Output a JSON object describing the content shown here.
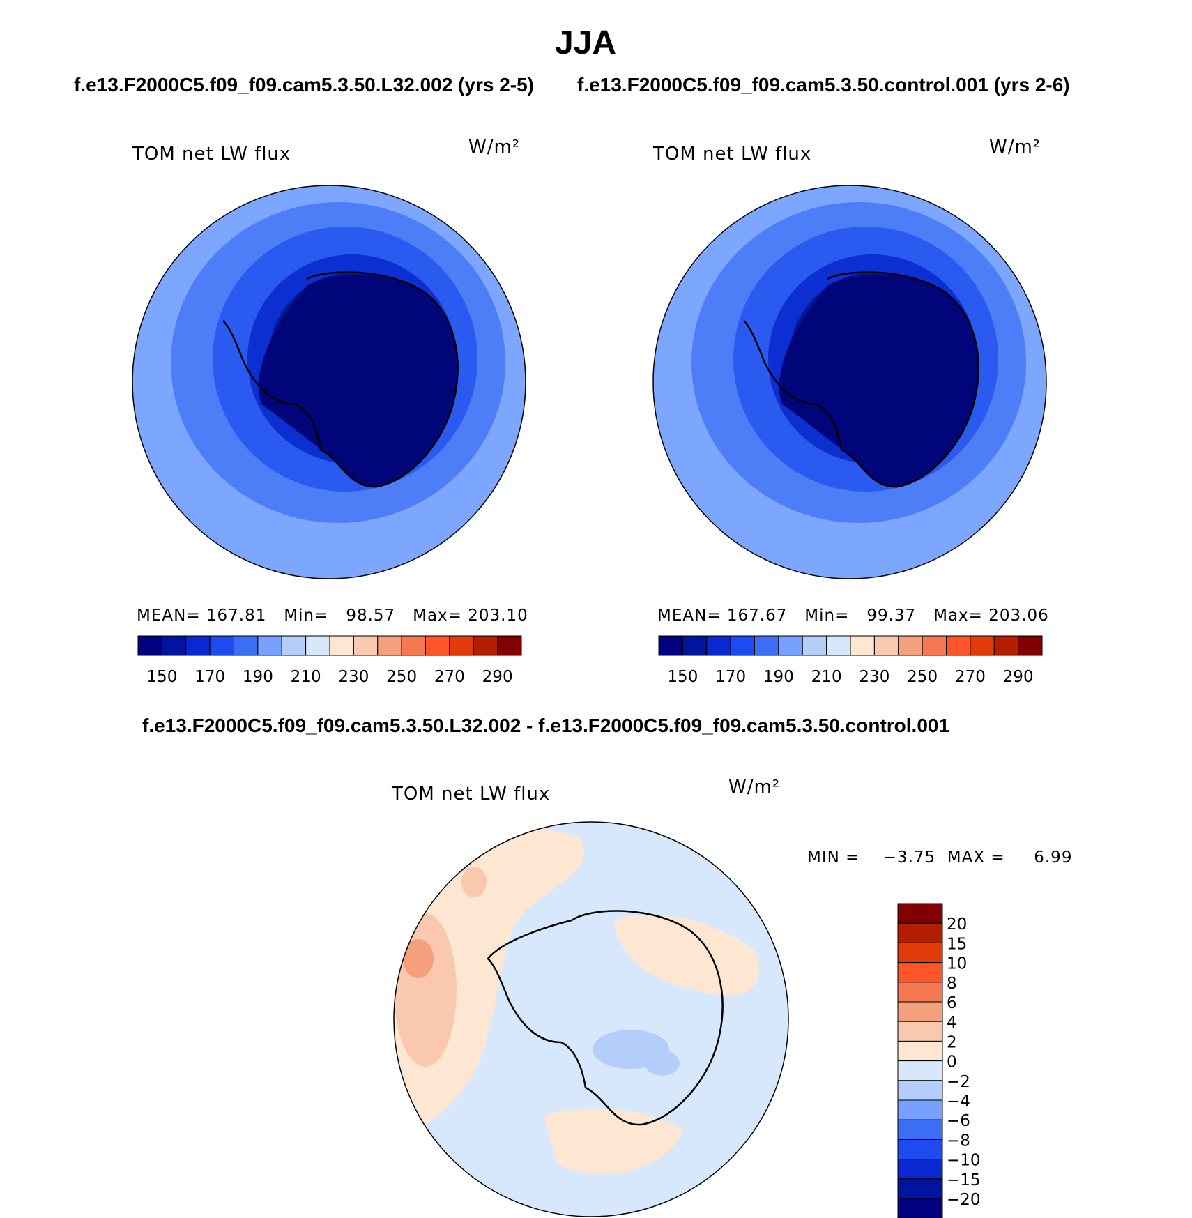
{
  "title": "JJA",
  "panel_left": {
    "subtitle": "f.e13.F2000C5.f09_f09.cam5.3.50.L32.002 (yrs 2-5)",
    "var_label": "TOM net LW flux",
    "units": "W/m²",
    "stats": "MEAN= 167.81   Min=   98.57   Max= 203.10",
    "mean": 167.81,
    "min": 98.57,
    "max": 203.1
  },
  "panel_right": {
    "subtitle": "f.e13.F2000C5.f09_f09.cam5.3.50.control.001 (yrs 2-6)",
    "var_label": "TOM net LW flux",
    "units": "W/m²",
    "stats": "MEAN= 167.67   Min=   99.37   Max= 203.06",
    "mean": 167.67,
    "min": 99.37,
    "max": 203.06
  },
  "panel_diff": {
    "subtitle": "f.e13.F2000C5.f09_f09.cam5.3.50.L32.002 - f.e13.F2000C5.f09_f09.cam5.3.50.control.001",
    "var_label": "TOM net LW flux",
    "units": "W/m²",
    "stats": "MIN =    −3.75  MAX =     6.99",
    "min": -3.75,
    "max": 6.99
  },
  "colorbar_top": {
    "tick_labels": [
      "150",
      "170",
      "190",
      "210",
      "230",
      "250",
      "270",
      "290"
    ],
    "colors": [
      "#000080",
      "#0014a0",
      "#0a28d2",
      "#1e4bf0",
      "#3c6ef5",
      "#78a0ff",
      "#b4cdfa",
      "#d7e8fc",
      "#fde6d2",
      "#fac8af",
      "#f5a07d",
      "#f57850",
      "#ff5528",
      "#e13c0a",
      "#b41e00",
      "#820000"
    ]
  },
  "colorbar_diff": {
    "tick_labels": [
      "20",
      "15",
      "10",
      "8",
      "6",
      "4",
      "2",
      "0",
      "−2",
      "−4",
      "−6",
      "−8",
      "−10",
      "−15",
      "−20"
    ],
    "colors": [
      "#820000",
      "#b41e00",
      "#e13c0a",
      "#ff5528",
      "#f57850",
      "#f5a07d",
      "#fac8af",
      "#fde6d2",
      "#d7e8fc",
      "#b4cdfa",
      "#78a0ff",
      "#3c6ef5",
      "#1e4bf0",
      "#0a28d2",
      "#0014a0",
      "#000080"
    ]
  },
  "map_colors": {
    "c1": "#7da6ff",
    "c2": "#4d7ef7",
    "c3": "#2b5af0",
    "c4": "#0c2fd2",
    "c5": "#001898",
    "c6": "#00067a",
    "d_neg": "#d7e8fc",
    "d_neg2": "#b4cdfa",
    "d_pos": "#fde6d2",
    "d_pos2": "#fac8af",
    "d_pos3": "#f5a07d"
  }
}
